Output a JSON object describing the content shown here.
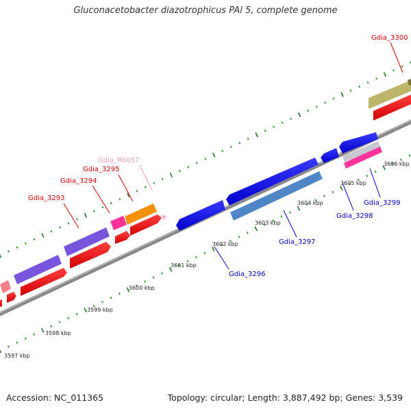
{
  "title": "Gluconacetobacter diazotrophicus PAl 5, complete genome",
  "footer": {
    "accession": "Accession: NC_011365",
    "topology": "Topology: circular; Length: 3,887,492 bp; Genes: 3,539"
  },
  "ticks": [
    "3597 kbp",
    "3598 kbp",
    "3599 kbp",
    "3600 kbp",
    "3601 kbp",
    "3602 kbp",
    "3603 kbp",
    "3604 kbp",
    "3605 kbp",
    "3606 kbp"
  ],
  "genes": [
    {
      "name": "Gdia_3293",
      "color": "#dd0000"
    },
    {
      "name": "Gdia_3294",
      "color": "#dd0000"
    },
    {
      "name": "Gdia_3295",
      "color": "#dd0000"
    },
    {
      "name": "Gdia_R0057",
      "color": "#ee99bb"
    },
    {
      "name": "Gdia_3296",
      "color": "#0000cc"
    },
    {
      "name": "Gdia_3297",
      "color": "#0000cc"
    },
    {
      "name": "Gdia_3298",
      "color": "#0000cc"
    },
    {
      "name": "Gdia_3299",
      "color": "#0000cc"
    },
    {
      "name": "Gdia_3300",
      "color": "#dd0000"
    }
  ]
}
